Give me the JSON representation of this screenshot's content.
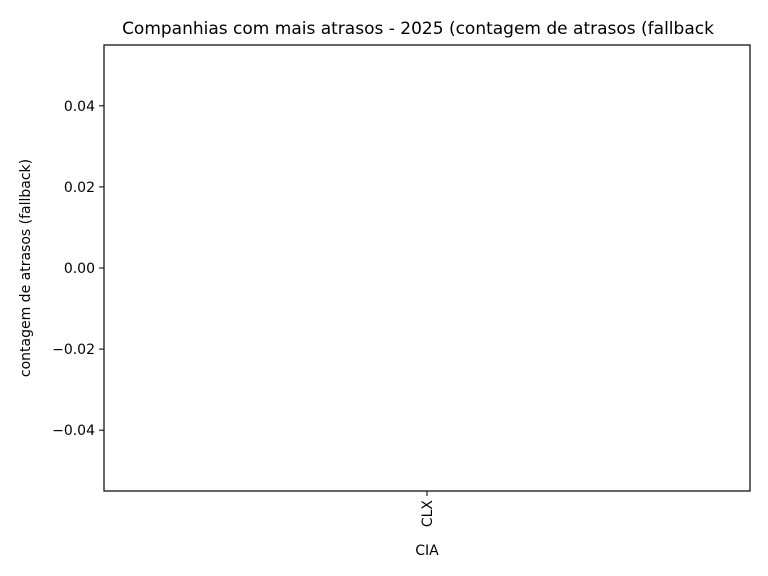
{
  "chart_data": {
    "type": "bar",
    "title": "Companhias com mais atrasos - 2025 (contagem de atrasos (fallback",
    "xlabel": "CIA",
    "ylabel": "contagem de atrasos (fallback)",
    "categories": [
      "CLX"
    ],
    "values": [
      0
    ],
    "ylim": [
      -0.055,
      0.055
    ],
    "yticks": [
      -0.04,
      -0.02,
      0.0,
      0.02,
      0.04
    ],
    "ytick_labels": [
      "−0.04",
      "−0.02",
      "0.00",
      "0.02",
      "0.04"
    ],
    "xtick_rotation": "vertical",
    "grid": false,
    "legend": "none"
  }
}
